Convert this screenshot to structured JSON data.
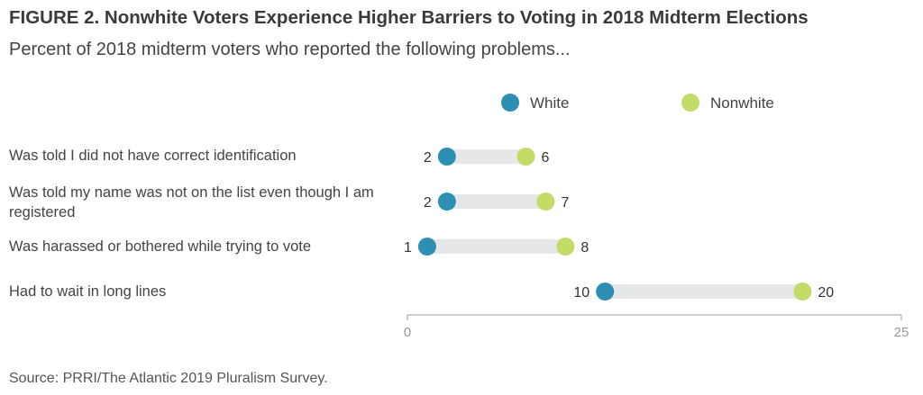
{
  "header": {
    "title": "FIGURE 2. Nonwhite Voters Experience Higher Barriers to Voting in 2018 Midterm Elections",
    "subtitle": "Percent of 2018 midterm voters who reported the following problems..."
  },
  "footer": {
    "source": "Source: PRRI/The Atlantic 2019 Pluralism Survey."
  },
  "chart_data": {
    "type": "dumbbell",
    "legend": {
      "placement": "top-center"
    },
    "series": [
      {
        "name": "White",
        "color": "#2e8fb4",
        "values": [
          2,
          2,
          1,
          10
        ]
      },
      {
        "name": "Nonwhite",
        "color": "#c3dc68",
        "values": [
          6,
          7,
          8,
          20
        ]
      }
    ],
    "categories": [
      "Was told I did not have correct identification",
      "Was told my name was not on the list even though I am registered",
      "Was harassed or bothered while trying to vote",
      "Had to wait in long lines"
    ],
    "xlim": [
      0,
      25
    ],
    "xticks": [
      "0",
      "25"
    ],
    "track_color": "#e6e8e8",
    "grid": false
  }
}
